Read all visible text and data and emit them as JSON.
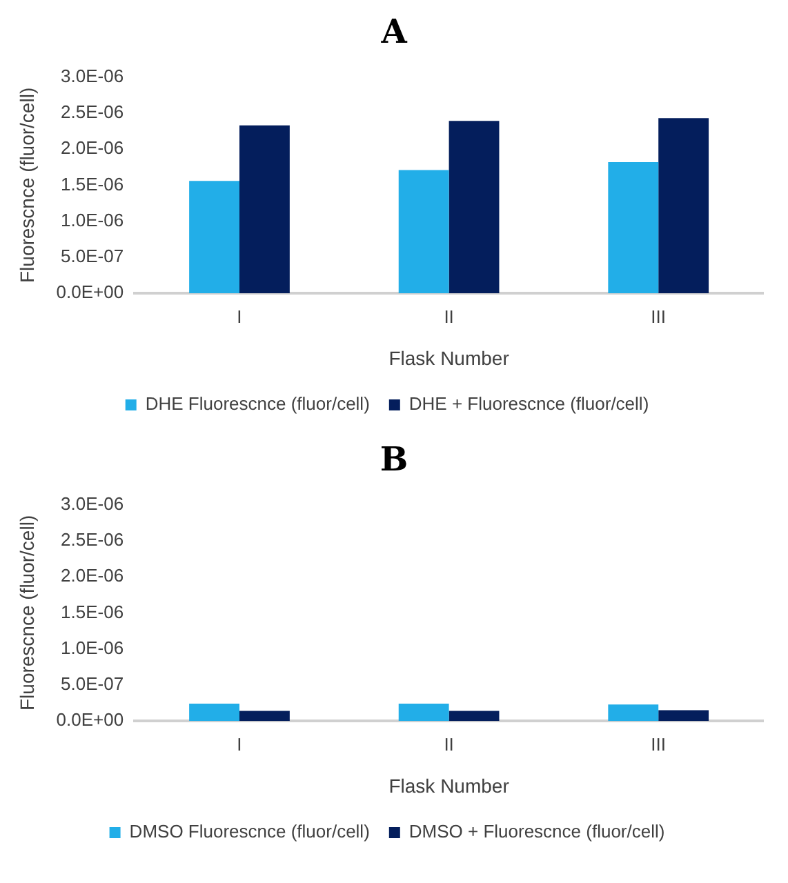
{
  "chart_data": [
    {
      "type": "bar",
      "title": "A",
      "xlabel": "Flask Number",
      "ylabel": "Fluorescnce (fluor/cell)",
      "categories": [
        "I",
        "II",
        "III"
      ],
      "series": [
        {
          "name": "DHE Fluorescnce (fluor/cell)",
          "color": "#22aee8",
          "values": [
            1.56e-06,
            1.71e-06,
            1.82e-06
          ]
        },
        {
          "name": "DHE + Fluorescnce (fluor/cell)",
          "color": "#041e5c",
          "values": [
            2.33e-06,
            2.39e-06,
            2.43e-06
          ]
        }
      ],
      "ylim": [
        0,
        3e-06
      ],
      "yticks": [
        {
          "value": 0,
          "label": "0.0E+00"
        },
        {
          "value": 5e-07,
          "label": "5.0E-07"
        },
        {
          "value": 1e-06,
          "label": "1.0E-06"
        },
        {
          "value": 1.5e-06,
          "label": "1.5E-06"
        },
        {
          "value": 2e-06,
          "label": "2.0E-06"
        },
        {
          "value": 2.5e-06,
          "label": "2.5E-06"
        },
        {
          "value": 3e-06,
          "label": "3.0E-06"
        }
      ],
      "grid": false,
      "legend": "bottom"
    },
    {
      "type": "bar",
      "title": "B",
      "xlabel": "Flask Number",
      "ylabel": "Fluorescnce (fluor/cell)",
      "categories": [
        "I",
        "II",
        "III"
      ],
      "series": [
        {
          "name": "DMSO Fluorescnce (fluor/cell)",
          "color": "#22aee8",
          "values": [
            2.4e-07,
            2.4e-07,
            2.3e-07
          ]
        },
        {
          "name": "DMSO + Fluorescnce (fluor/cell)",
          "color": "#041e5c",
          "values": [
            1.4e-07,
            1.4e-07,
            1.5e-07
          ]
        }
      ],
      "ylim": [
        0,
        3e-06
      ],
      "yticks": [
        {
          "value": 0,
          "label": "0.0E+00"
        },
        {
          "value": 5e-07,
          "label": "5.0E-07"
        },
        {
          "value": 1e-06,
          "label": "1.0E-06"
        },
        {
          "value": 1.5e-06,
          "label": "1.5E-06"
        },
        {
          "value": 2e-06,
          "label": "2.0E-06"
        },
        {
          "value": 2.5e-06,
          "label": "2.5E-06"
        },
        {
          "value": 3e-06,
          "label": "3.0E-06"
        }
      ],
      "grid": false,
      "legend": "bottom"
    }
  ]
}
